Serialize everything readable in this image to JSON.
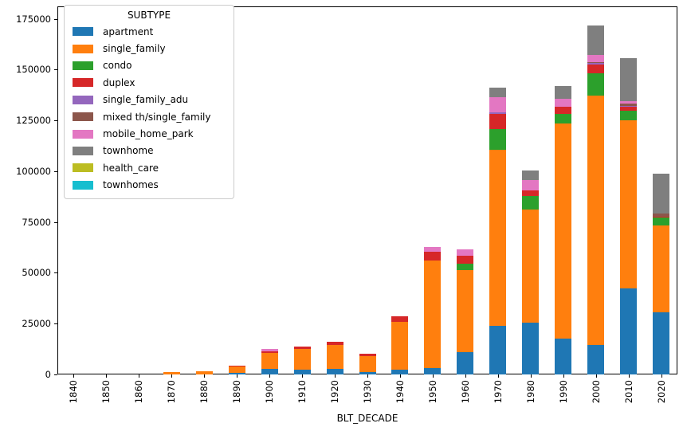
{
  "chart_data": {
    "type": "bar",
    "stacked": true,
    "title": "",
    "xlabel": "BLT_DECADE",
    "ylabel": "",
    "grid": false,
    "categories": [
      "1840",
      "1850",
      "1860",
      "1870",
      "1880",
      "1890",
      "1900",
      "1910",
      "1920",
      "1930",
      "1940",
      "1950",
      "1960",
      "1970",
      "1980",
      "1990",
      "2000",
      "2010",
      "2020"
    ],
    "series": [
      {
        "name": "apartment",
        "color": "#1f77b4",
        "values": [
          0,
          0,
          0,
          0,
          0,
          600,
          2600,
          2400,
          2600,
          1300,
          2400,
          3200,
          11000,
          23800,
          25500,
          17600,
          14400,
          42400,
          30700
        ]
      },
      {
        "name": "single_family",
        "color": "#ff7f0e",
        "values": [
          0,
          0,
          0,
          1000,
          1700,
          3300,
          7800,
          10000,
          11900,
          7800,
          23500,
          52900,
          40500,
          86600,
          55500,
          105800,
          122800,
          82700,
          42500
        ]
      },
      {
        "name": "condo",
        "color": "#2ca02c",
        "values": [
          0,
          0,
          0,
          0,
          0,
          0,
          0,
          0,
          0,
          0,
          0,
          0,
          3100,
          10400,
          6900,
          4800,
          11100,
          4600,
          3900
        ]
      },
      {
        "name": "duplex",
        "color": "#d62728",
        "values": [
          0,
          0,
          0,
          0,
          0,
          400,
          900,
          1300,
          1500,
          1100,
          2600,
          4200,
          3900,
          7200,
          2500,
          3700,
          4300,
          2000,
          500
        ]
      },
      {
        "name": "single_family_adu",
        "color": "#9467bd",
        "values": [
          0,
          0,
          0,
          0,
          0,
          0,
          0,
          0,
          0,
          0,
          0,
          0,
          0,
          1000,
          0,
          0,
          700,
          400,
          0
        ]
      },
      {
        "name": "mixed th/single_family",
        "color": "#8c564b",
        "values": [
          0,
          0,
          0,
          0,
          0,
          0,
          0,
          0,
          0,
          0,
          0,
          0,
          0,
          0,
          0,
          0,
          500,
          1200,
          1500
        ]
      },
      {
        "name": "mobile_home_park",
        "color": "#e377c2",
        "values": [
          0,
          0,
          0,
          0,
          0,
          0,
          1100,
          0,
          0,
          0,
          0,
          2400,
          2900,
          7600,
          5300,
          3900,
          3300,
          1100,
          0
        ]
      },
      {
        "name": "townhome",
        "color": "#7f7f7f",
        "values": [
          0,
          0,
          0,
          0,
          0,
          0,
          0,
          0,
          0,
          0,
          0,
          0,
          0,
          4600,
          4500,
          6100,
          14400,
          21200,
          19800
        ]
      },
      {
        "name": "health_care",
        "color": "#bcbd22",
        "values": [
          0,
          0,
          0,
          0,
          0,
          0,
          0,
          0,
          0,
          0,
          0,
          0,
          0,
          0,
          0,
          0,
          0,
          0,
          0
        ]
      },
      {
        "name": "townhomes",
        "color": "#17becf",
        "values": [
          0,
          0,
          0,
          0,
          0,
          0,
          0,
          0,
          0,
          0,
          0,
          0,
          0,
          0,
          0,
          0,
          0,
          0,
          0
        ]
      }
    ],
    "ylim": [
      0,
      181100
    ],
    "yticks": [
      0,
      25000,
      50000,
      75000,
      100000,
      125000,
      150000,
      175000
    ],
    "legend": {
      "title": "SUBTYPE",
      "position": "upper left"
    }
  }
}
